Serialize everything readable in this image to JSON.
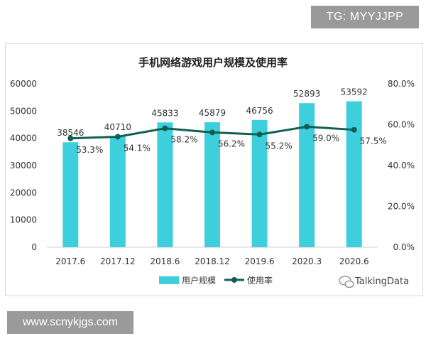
{
  "watermarks": {
    "top": "TG: MYYJJPP",
    "bottom": "www.scnykjgs.com"
  },
  "brand": "TalkingData",
  "colors": {
    "bar": "#3ecfdc",
    "line": "#0f5f55",
    "text": "#333333"
  },
  "chart_data": {
    "type": "bar",
    "title": "手机网络游戏用户规模及使用率",
    "categories": [
      "2017.6",
      "2017.12",
      "2018.6",
      "2018.12",
      "2019.6",
      "2020.3",
      "2020.6"
    ],
    "series": [
      {
        "name": "用户规模",
        "type": "bar",
        "axis": "left",
        "values": [
          38546,
          40710,
          45833,
          45879,
          46756,
          52893,
          53592
        ],
        "labels": [
          "38546",
          "40710",
          "45833",
          "45879",
          "46756",
          "52893",
          "53592"
        ]
      },
      {
        "name": "使用率",
        "type": "line",
        "axis": "right",
        "values": [
          53.3,
          54.1,
          58.2,
          56.2,
          55.2,
          59.0,
          57.5
        ],
        "labels": [
          "53.3%",
          "54.1%",
          "58.2%",
          "56.2%",
          "55.2%",
          "59.0%",
          "57.5%"
        ]
      }
    ],
    "y_left": {
      "ticks": [
        "0",
        "10000",
        "20000",
        "30000",
        "40000",
        "50000",
        "60000"
      ],
      "ylim": [
        0,
        60000
      ]
    },
    "y_right": {
      "ticks": [
        "0.0%",
        "20.0%",
        "40.0%",
        "60.0%",
        "80.0%"
      ],
      "ylim": [
        0,
        80
      ]
    },
    "legend": [
      "用户规模",
      "使用率"
    ],
    "legend_position": "bottom",
    "grid": false
  }
}
